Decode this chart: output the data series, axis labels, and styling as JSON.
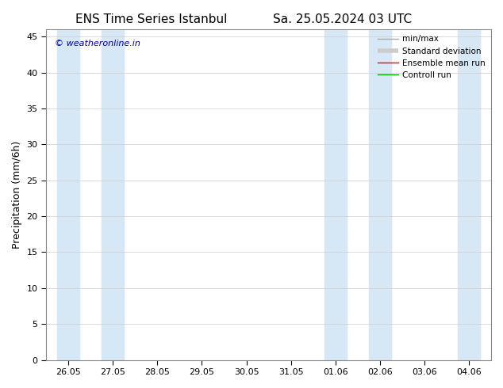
{
  "title_left": "ENS Time Series Istanbul",
  "title_right": "Sa. 25.05.2024 03 UTC",
  "ylabel": "Precipitation (mm/6h)",
  "ylim": [
    0,
    46
  ],
  "yticks": [
    0,
    5,
    10,
    15,
    20,
    25,
    30,
    35,
    40,
    45
  ],
  "xlabels": [
    "26.05",
    "27.05",
    "28.05",
    "29.05",
    "30.05",
    "31.05",
    "01.06",
    "02.06",
    "03.06",
    "04.06"
  ],
  "x_positions": [
    0,
    1,
    2,
    3,
    4,
    5,
    6,
    7,
    8,
    9
  ],
  "shaded_bands": [
    0,
    1,
    6,
    7,
    9
  ],
  "band_color": "#d6e8f5",
  "background_color": "#ffffff",
  "plot_bg_color": "#ffffff",
  "watermark": "© weatheronline.in",
  "watermark_color": "#0000aa",
  "legend_items": [
    {
      "label": "min/max",
      "color": "#aaaaaa",
      "lw": 1
    },
    {
      "label": "Standard deviation",
      "color": "#cccccc",
      "lw": 4
    },
    {
      "label": "Ensemble mean run",
      "color": "#ff0000",
      "lw": 1
    },
    {
      "label": "Controll run",
      "color": "#00aa00",
      "lw": 1
    }
  ],
  "grid_color": "#cccccc",
  "tick_fontsize": 8,
  "title_fontsize": 11,
  "ylabel_fontsize": 9
}
